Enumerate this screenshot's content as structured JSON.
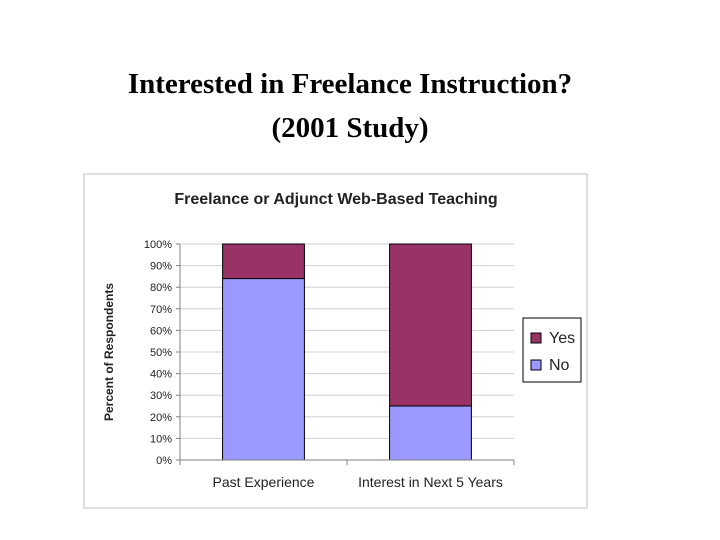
{
  "slide": {
    "title_line1": "Interested in Freelance Instruction?",
    "title_line2": "(2001 Study)"
  },
  "chart_data": {
    "type": "bar",
    "stacked": true,
    "percent_stacked": true,
    "title": "Freelance or Adjunct Web-Based Teaching",
    "xlabel": "",
    "ylabel": "Percent of Respondents",
    "categories": [
      "Past Experience",
      "Interest in Next 5 Years"
    ],
    "series": [
      {
        "name": "No",
        "values": [
          84,
          25
        ],
        "color": "#9999ff"
      },
      {
        "name": "Yes",
        "values": [
          16,
          75
        ],
        "color": "#993366"
      }
    ],
    "ylim": [
      0,
      100
    ],
    "yticks": [
      "0%",
      "10%",
      "20%",
      "30%",
      "40%",
      "50%",
      "60%",
      "70%",
      "80%",
      "90%",
      "100%"
    ],
    "grid": true,
    "legend": {
      "position": "right",
      "entries": [
        "Yes",
        "No"
      ]
    }
  }
}
